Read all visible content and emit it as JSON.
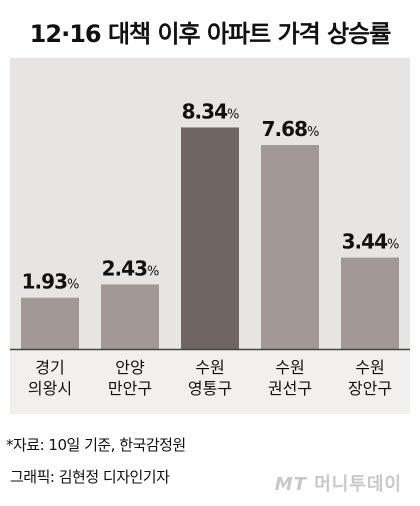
{
  "title": "12·16 대책 이후 아파트 가격 상승률",
  "chart_data": {
    "type": "bar",
    "categories": [
      [
        "경기",
        "의왕시"
      ],
      [
        "안양",
        "만안구"
      ],
      [
        "수원",
        "영통구"
      ],
      [
        "수원",
        "권선구"
      ],
      [
        "수원",
        "장안구"
      ]
    ],
    "values": [
      1.93,
      2.43,
      8.34,
      7.68,
      3.44
    ],
    "value_labels": [
      "1.93",
      "2.43",
      "8.34",
      "7.68",
      "3.44"
    ],
    "unit": "%",
    "ylim": [
      0,
      9.6
    ],
    "colors": {
      "bar": "#a29896",
      "highlight": "#6f6563"
    },
    "highlight_index": 2
  },
  "footer": {
    "source": "*자료: 10일 기준, 한국감정원",
    "credit": "그래픽: 김현정 디자인기자"
  },
  "watermark": {
    "logo": "MT",
    "text": "머니투데이"
  }
}
